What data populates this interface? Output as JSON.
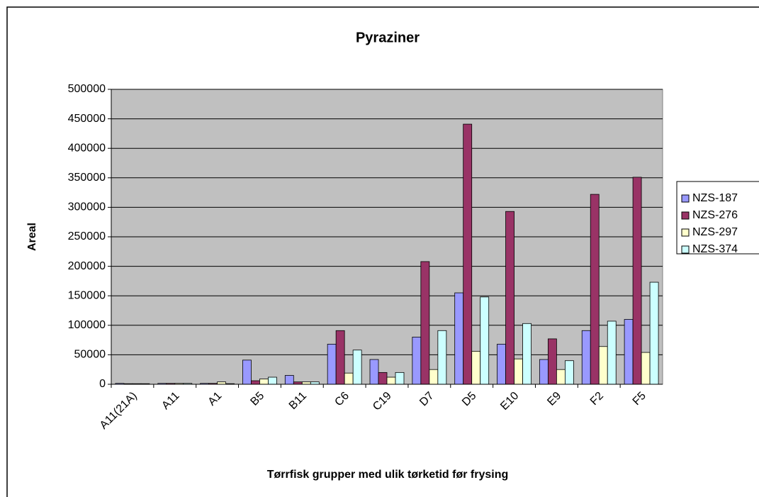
{
  "chart_data": {
    "type": "bar",
    "title": "Pyraziner",
    "x_label": "Tørrfisk grupper med ulik tørketid før frysing",
    "y_label": "Areal",
    "categories": [
      "A11(21A)",
      "A11",
      "A1",
      "B5",
      "B11",
      "C6",
      "C19",
      "D7",
      "D5",
      "E10",
      "E9",
      "F2",
      "F5"
    ],
    "series": [
      {
        "name": "NZS-187",
        "color": "#9999ff",
        "values": [
          1500,
          1500,
          1500,
          41000,
          15000,
          68000,
          42000,
          80000,
          155000,
          68000,
          42000,
          91000,
          110000
        ]
      },
      {
        "name": "NZS-276",
        "color": "#993366",
        "values": [
          1000,
          1500,
          1500,
          6000,
          4000,
          91000,
          20000,
          208000,
          441000,
          293000,
          77000,
          322000,
          351000
        ]
      },
      {
        "name": "NZS-297",
        "color": "#ffffcc",
        "values": [
          1000,
          1500,
          4000,
          9000,
          4000,
          19000,
          12000,
          25000,
          56000,
          43000,
          25000,
          64000,
          54000
        ]
      },
      {
        "name": "NZS-374",
        "color": "#ccffff",
        "values": [
          1000,
          1500,
          1000,
          12000,
          4000,
          58000,
          20000,
          91000,
          148000,
          103000,
          40000,
          107000,
          173000
        ]
      }
    ],
    "ylim": [
      0,
      500000
    ],
    "yticks": [
      0,
      50000,
      100000,
      150000,
      200000,
      250000,
      300000,
      350000,
      400000,
      450000,
      500000
    ],
    "grid": true,
    "legend": "right",
    "plot_background": "#c0c0c0"
  }
}
